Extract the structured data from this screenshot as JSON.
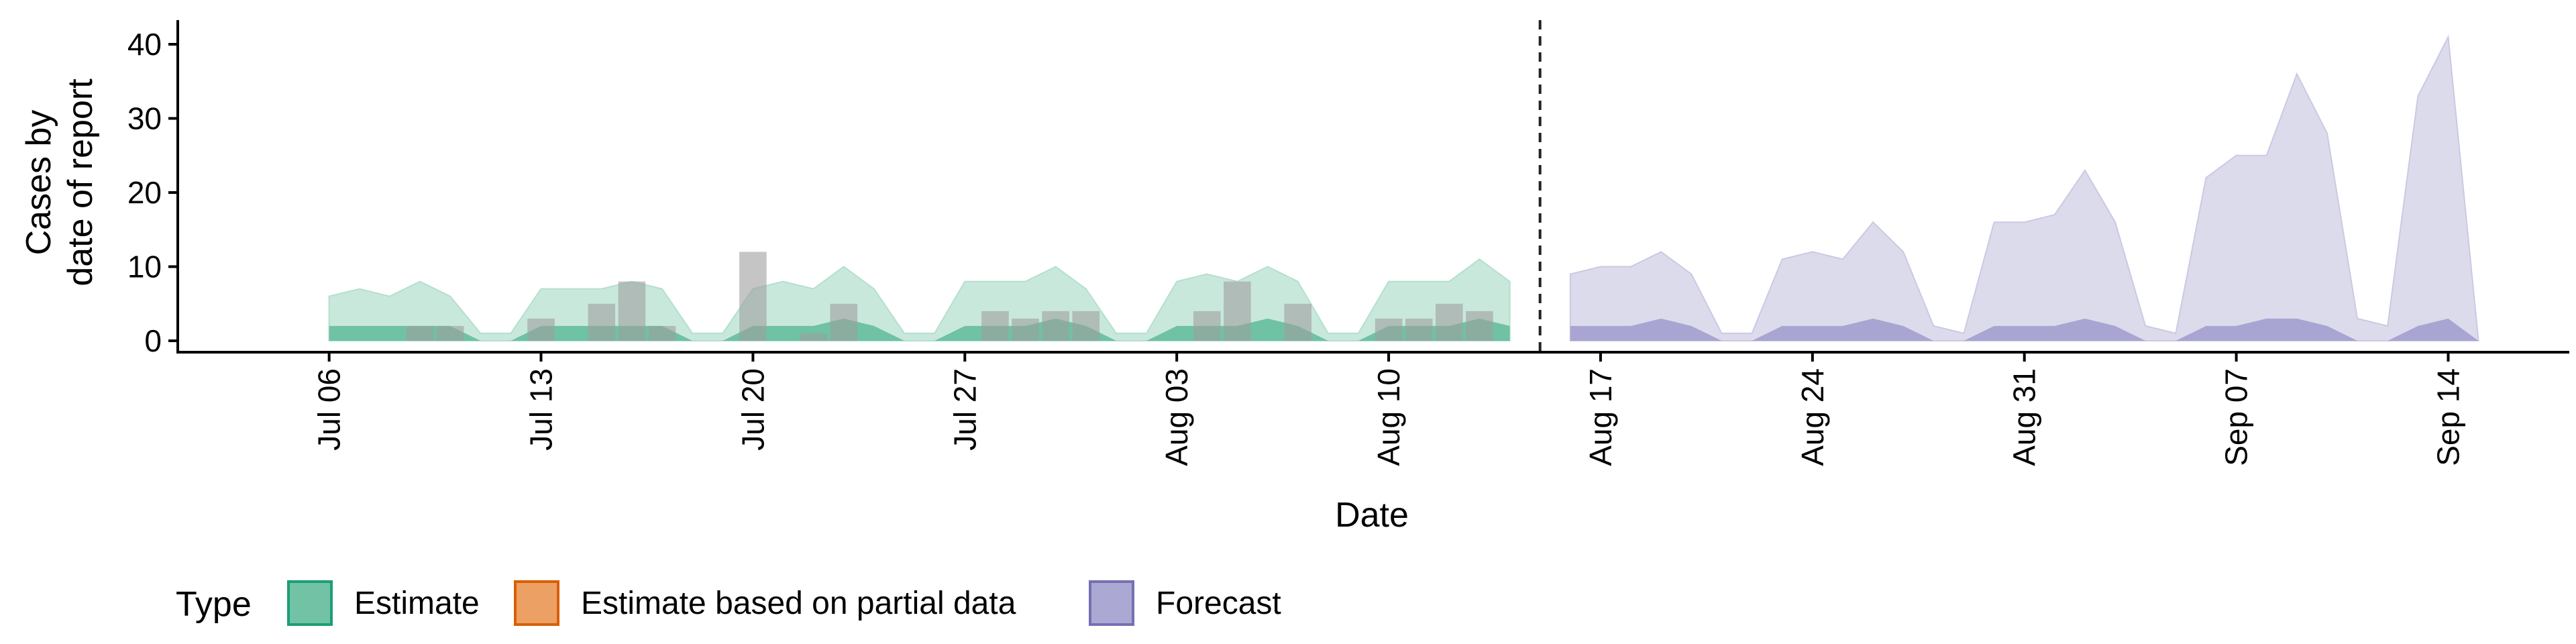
{
  "chart_data": {
    "type": "area",
    "xlabel": "Date",
    "ylabel_lines": [
      "Cases by",
      "date of report"
    ],
    "ylim": [
      0,
      42
    ],
    "y_ticks": [
      0,
      10,
      20,
      30,
      40
    ],
    "x_range": [
      "2020-07-01",
      "2020-09-18"
    ],
    "x_ticks": [
      {
        "date": "2020-07-06",
        "label": "Jul 06"
      },
      {
        "date": "2020-07-13",
        "label": "Jul 13"
      },
      {
        "date": "2020-07-20",
        "label": "Jul 20"
      },
      {
        "date": "2020-07-27",
        "label": "Jul 27"
      },
      {
        "date": "2020-08-03",
        "label": "Aug 03"
      },
      {
        "date": "2020-08-10",
        "label": "Aug 10"
      },
      {
        "date": "2020-08-17",
        "label": "Aug 17"
      },
      {
        "date": "2020-08-24",
        "label": "Aug 24"
      },
      {
        "date": "2020-08-31",
        "label": "Aug 31"
      },
      {
        "date": "2020-09-07",
        "label": "Sep 07"
      },
      {
        "date": "2020-09-14",
        "label": "Sep 14"
      }
    ],
    "forecast_start_line": "2020-08-15",
    "grid": false,
    "legend": {
      "title": "Type",
      "position": "bottom-left",
      "entries": [
        {
          "label": "Estimate",
          "fill": "#72c2a6",
          "stroke": "#1b9e77"
        },
        {
          "label": "Estimate based on partial data",
          "fill": "#eda064",
          "stroke": "#d95f02"
        },
        {
          "label": "Forecast",
          "fill": "#aba8d3",
          "stroke": "#7570b3"
        }
      ]
    },
    "colors": {
      "estimate_outer": "#c9e8dc",
      "estimate_inner": "#6fc2a3",
      "forecast_outer": "#dcdbec",
      "forecast_inner": "#a9a5d2",
      "observed_bar": "#9e9e9e"
    },
    "series": [
      {
        "type": "Estimate",
        "x": [
          "2020-07-06",
          "2020-07-07",
          "2020-07-08",
          "2020-07-09",
          "2020-07-10",
          "2020-07-11",
          "2020-07-12",
          "2020-07-13",
          "2020-07-14",
          "2020-07-15",
          "2020-07-16",
          "2020-07-17",
          "2020-07-18",
          "2020-07-19",
          "2020-07-20",
          "2020-07-21",
          "2020-07-22",
          "2020-07-23",
          "2020-07-24",
          "2020-07-25",
          "2020-07-26",
          "2020-07-27",
          "2020-07-28",
          "2020-07-29",
          "2020-07-30",
          "2020-07-31",
          "2020-08-01",
          "2020-08-02",
          "2020-08-03",
          "2020-08-04",
          "2020-08-05",
          "2020-08-06",
          "2020-08-07",
          "2020-08-08",
          "2020-08-09",
          "2020-08-10",
          "2020-08-11",
          "2020-08-12",
          "2020-08-13",
          "2020-08-14"
        ],
        "outer_upper": [
          6,
          7,
          6,
          8,
          6,
          1,
          1,
          7,
          7,
          7,
          8,
          7,
          1,
          1,
          7,
          8,
          7,
          10,
          7,
          1,
          1,
          8,
          8,
          8,
          10,
          7,
          1,
          1,
          8,
          9,
          8,
          10,
          8,
          1,
          1,
          8,
          8,
          8,
          11,
          8
        ],
        "inner_upper": [
          2,
          2,
          2,
          2,
          2,
          0,
          0,
          2,
          2,
          2,
          2,
          2,
          0,
          0,
          2,
          2,
          2,
          3,
          2,
          0,
          0,
          2,
          2,
          2,
          3,
          2,
          0,
          0,
          2,
          2,
          2,
          3,
          2,
          0,
          0,
          2,
          2,
          2,
          3,
          2
        ]
      },
      {
        "type": "Forecast",
        "x": [
          "2020-08-16",
          "2020-08-17",
          "2020-08-18",
          "2020-08-19",
          "2020-08-20",
          "2020-08-21",
          "2020-08-22",
          "2020-08-23",
          "2020-08-24",
          "2020-08-25",
          "2020-08-26",
          "2020-08-27",
          "2020-08-28",
          "2020-08-29",
          "2020-08-30",
          "2020-08-31",
          "2020-09-01",
          "2020-09-02",
          "2020-09-03",
          "2020-09-04",
          "2020-09-05",
          "2020-09-06",
          "2020-09-07",
          "2020-09-08",
          "2020-09-09",
          "2020-09-10",
          "2020-09-11",
          "2020-09-12",
          "2020-09-13",
          "2020-09-14",
          "2020-09-15"
        ],
        "outer_upper": [
          9,
          10,
          10,
          12,
          9,
          1,
          1,
          11,
          12,
          11,
          16,
          12,
          2,
          1,
          16,
          16,
          17,
          23,
          16,
          2,
          1,
          22,
          25,
          25,
          36,
          28,
          3,
          2,
          33,
          41,
          0
        ],
        "inner_upper": [
          2,
          2,
          2,
          3,
          2,
          0,
          0,
          2,
          2,
          2,
          3,
          2,
          0,
          0,
          2,
          2,
          2,
          3,
          2,
          0,
          0,
          2,
          2,
          3,
          3,
          2,
          0,
          0,
          2,
          3,
          0
        ]
      }
    ],
    "observed_cases": {
      "x": [
        "2020-07-09",
        "2020-07-10",
        "2020-07-13",
        "2020-07-15",
        "2020-07-16",
        "2020-07-17",
        "2020-07-20",
        "2020-07-22",
        "2020-07-23",
        "2020-07-28",
        "2020-07-29",
        "2020-07-30",
        "2020-07-31",
        "2020-08-04",
        "2020-08-05",
        "2020-08-07",
        "2020-08-10",
        "2020-08-11",
        "2020-08-12",
        "2020-08-13"
      ],
      "values": [
        2,
        2,
        3,
        5,
        8,
        2,
        12,
        1,
        5,
        4,
        3,
        4,
        4,
        4,
        8,
        5,
        3,
        3,
        5,
        4
      ]
    }
  }
}
